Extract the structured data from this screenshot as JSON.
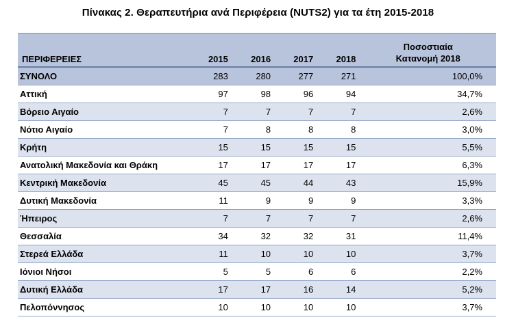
{
  "title": "Πίνακας 2. Θεραπευτήρια ανά Περιφέρεια (NUTS2)  για τα έτη 2015-2018",
  "headers": {
    "region": "ΠΕΡΙΦΕΡΕΙΕΣ",
    "years": [
      "2015",
      "2016",
      "2017",
      "2018"
    ],
    "pct_line1": "Ποσοστιαία",
    "pct_line2": "Κατανομή 2018"
  },
  "rows": [
    {
      "region": "ΣΥΝΟΛΟ",
      "v2015": "283",
      "v2016": "280",
      "v2017": "277",
      "v2018": "271",
      "pct": "100,0%"
    },
    {
      "region": "Αττική",
      "v2015": "97",
      "v2016": "98",
      "v2017": "96",
      "v2018": "94",
      "pct": "34,7%"
    },
    {
      "region": "Βόρειο Αιγαίο",
      "v2015": "7",
      "v2016": "7",
      "v2017": "7",
      "v2018": "7",
      "pct": "2,6%"
    },
    {
      "region": "Νότιο Αιγαίο",
      "v2015": "7",
      "v2016": "8",
      "v2017": "8",
      "v2018": "8",
      "pct": "3,0%"
    },
    {
      "region": "Κρήτη",
      "v2015": "15",
      "v2016": "15",
      "v2017": "15",
      "v2018": "15",
      "pct": "5,5%"
    },
    {
      "region": "Ανατολική Μακεδονία και Θράκη",
      "v2015": "17",
      "v2016": "17",
      "v2017": "17",
      "v2018": "17",
      "pct": "6,3%"
    },
    {
      "region": "Κεντρική Μακεδονία",
      "v2015": "45",
      "v2016": "45",
      "v2017": "44",
      "v2018": "43",
      "pct": "15,9%"
    },
    {
      "region": "Δυτική Μακεδονία",
      "v2015": "11",
      "v2016": "9",
      "v2017": "9",
      "v2018": "9",
      "pct": "3,3%"
    },
    {
      "region": "Ήπειρος",
      "v2015": "7",
      "v2016": "7",
      "v2017": "7",
      "v2018": "7",
      "pct": "2,6%"
    },
    {
      "region": "Θεσσαλία",
      "v2015": "34",
      "v2016": "32",
      "v2017": "32",
      "v2018": "31",
      "pct": "11,4%"
    },
    {
      "region": "Στερεά Ελλάδα",
      "v2015": "11",
      "v2016": "10",
      "v2017": "10",
      "v2018": "10",
      "pct": "3,7%"
    },
    {
      "region": "Ιόνιοι Νήσοι",
      "v2015": "5",
      "v2016": "5",
      "v2017": "6",
      "v2018": "6",
      "pct": "2,2%"
    },
    {
      "region": "Δυτική Ελλάδα",
      "v2015": "17",
      "v2016": "17",
      "v2017": "16",
      "v2018": "14",
      "pct": "5,2%"
    },
    {
      "region": "Πελοπόννησος",
      "v2015": "10",
      "v2016": "10",
      "v2017": "10",
      "v2018": "10",
      "pct": "3,7%"
    }
  ],
  "colors": {
    "header_bg": "#b8c3dc",
    "shaded_row_bg": "#dce2ee",
    "row_border": "#94a3c8"
  }
}
